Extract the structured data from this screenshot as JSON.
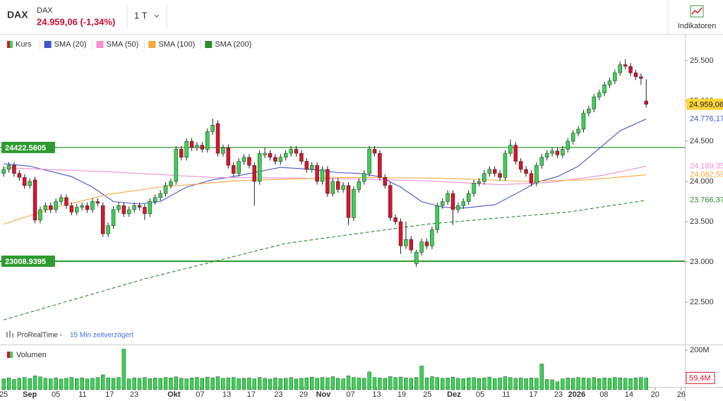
{
  "header": {
    "symbol": "DAX",
    "name": "DAX",
    "quote": "24.959,06 (-1,34%)",
    "period": "1 T",
    "button": "Indikatoren"
  },
  "chart_data": {
    "type": "candlestick",
    "price": {
      "name": "Kurs",
      "up_color": "#39d353",
      "down_color": "#d9142b",
      "last_label": "24.959,06",
      "last_color": "#ffd43b",
      "ohlc": [
        [
          24100,
          24190,
          24060,
          24150
        ],
        [
          24150,
          24240,
          24110,
          24200
        ],
        [
          24200,
          24240,
          24060,
          24100
        ],
        [
          24100,
          24140,
          24010,
          24050
        ],
        [
          24050,
          24090,
          23910,
          23950
        ],
        [
          23950,
          24040,
          23910,
          24000
        ],
        [
          24020,
          24060,
          23480,
          23520
        ],
        [
          23520,
          23690,
          23480,
          23650
        ],
        [
          23650,
          23740,
          23610,
          23700
        ],
        [
          23700,
          23740,
          23610,
          23650
        ],
        [
          23650,
          23790,
          23610,
          23750
        ],
        [
          23750,
          23840,
          23710,
          23800
        ],
        [
          23800,
          23840,
          23660,
          23700
        ],
        [
          23700,
          23740,
          23580,
          23620
        ],
        [
          23620,
          23720,
          23580,
          23680
        ],
        [
          23680,
          23740,
          23640,
          23700
        ],
        [
          23700,
          23740,
          23610,
          23650
        ],
        [
          23650,
          23790,
          23610,
          23750
        ],
        [
          23750,
          23790,
          23690,
          23730
        ],
        [
          23700,
          23740,
          23310,
          23350
        ],
        [
          23350,
          23490,
          23310,
          23450
        ],
        [
          23450,
          23690,
          23410,
          23650
        ],
        [
          23650,
          23740,
          23610,
          23700
        ],
        [
          23700,
          23740,
          23560,
          23600
        ],
        [
          23600,
          23690,
          23560,
          23650
        ],
        [
          23650,
          23740,
          23610,
          23700
        ],
        [
          23700,
          23740,
          23640,
          23680
        ],
        [
          23680,
          23720,
          23520,
          23600
        ],
        [
          23600,
          23790,
          23560,
          23750
        ],
        [
          23750,
          23840,
          23710,
          23800
        ],
        [
          23800,
          23890,
          23760,
          23850
        ],
        [
          23850,
          23990,
          23810,
          23950
        ],
        [
          23950,
          24040,
          23910,
          24000
        ],
        [
          24000,
          24440,
          23960,
          24400
        ],
        [
          24400,
          24440,
          24260,
          24300
        ],
        [
          24300,
          24540,
          24260,
          24500
        ],
        [
          24500,
          24540,
          24380,
          24420
        ],
        [
          24420,
          24490,
          24380,
          24450
        ],
        [
          24450,
          24490,
          24360,
          24400
        ],
        [
          24400,
          24660,
          24360,
          24620
        ],
        [
          24620,
          24780,
          24580,
          24700
        ],
        [
          24720,
          24760,
          24310,
          24350
        ],
        [
          24350,
          24460,
          24310,
          24420
        ],
        [
          24420,
          24460,
          24160,
          24200
        ],
        [
          24200,
          24240,
          24060,
          24100
        ],
        [
          24100,
          24290,
          24060,
          24250
        ],
        [
          24250,
          24340,
          24210,
          24300
        ],
        [
          24300,
          24340,
          24160,
          24200
        ],
        [
          24200,
          24240,
          23700,
          24000
        ],
        [
          24000,
          24390,
          23960,
          24350
        ],
        [
          24330,
          24420,
          24290,
          24350
        ],
        [
          24350,
          24390,
          24260,
          24300
        ],
        [
          24300,
          24340,
          24210,
          24250
        ],
        [
          24250,
          24340,
          24210,
          24300
        ],
        [
          24300,
          24390,
          24260,
          24350
        ],
        [
          24350,
          24440,
          24310,
          24400
        ],
        [
          24400,
          24440,
          24310,
          24350
        ],
        [
          24350,
          24390,
          24210,
          24250
        ],
        [
          24250,
          24290,
          24110,
          24150
        ],
        [
          24150,
          24240,
          24110,
          24200
        ],
        [
          24200,
          24240,
          23960,
          24000
        ],
        [
          24000,
          24190,
          23960,
          24150
        ],
        [
          24150,
          24190,
          23810,
          23850
        ],
        [
          23850,
          24040,
          23810,
          24000
        ],
        [
          24000,
          24040,
          23860,
          23900
        ],
        [
          23900,
          23990,
          23860,
          23950
        ],
        [
          23950,
          23990,
          23460,
          23550
        ],
        [
          23550,
          23940,
          23510,
          23900
        ],
        [
          23900,
          24040,
          23860,
          24000
        ],
        [
          24000,
          24140,
          23960,
          24100
        ],
        [
          24100,
          24440,
          24060,
          24400
        ],
        [
          24400,
          24440,
          24310,
          24350
        ],
        [
          24350,
          24390,
          24010,
          24050
        ],
        [
          24050,
          24090,
          23910,
          23950
        ],
        [
          23950,
          23990,
          23510,
          23550
        ],
        [
          23550,
          23590,
          23460,
          23500
        ],
        [
          23500,
          23540,
          23100,
          23200
        ],
        [
          23200,
          23500,
          23160,
          23280
        ],
        [
          23280,
          23320,
          23110,
          23150
        ],
        [
          22980,
          23150,
          22940,
          23120
        ],
        [
          23120,
          23290,
          23080,
          23250
        ],
        [
          23250,
          23290,
          23160,
          23200
        ],
        [
          23200,
          23440,
          23160,
          23400
        ],
        [
          23400,
          23740,
          23360,
          23700
        ],
        [
          23700,
          23790,
          23660,
          23750
        ],
        [
          23750,
          23890,
          23710,
          23850
        ],
        [
          23850,
          23890,
          23460,
          23650
        ],
        [
          23650,
          23740,
          23610,
          23700
        ],
        [
          23700,
          23790,
          23660,
          23750
        ],
        [
          23750,
          23890,
          23710,
          23850
        ],
        [
          23850,
          24020,
          23810,
          23980
        ],
        [
          23980,
          24040,
          23940,
          24000
        ],
        [
          24000,
          24140,
          23960,
          24100
        ],
        [
          24100,
          24190,
          24060,
          24150
        ],
        [
          24150,
          24190,
          24060,
          24100
        ],
        [
          24100,
          24140,
          24010,
          24050
        ],
        [
          24050,
          24390,
          24010,
          24350
        ],
        [
          24350,
          24520,
          24310,
          24450
        ],
        [
          24450,
          24490,
          24210,
          24250
        ],
        [
          24250,
          24290,
          24110,
          24150
        ],
        [
          24150,
          24190,
          24060,
          24100
        ],
        [
          24100,
          24140,
          23940,
          23980
        ],
        [
          23980,
          24240,
          23940,
          24200
        ],
        [
          24200,
          24340,
          24160,
          24300
        ],
        [
          24300,
          24390,
          24260,
          24350
        ],
        [
          24350,
          24420,
          24310,
          24380
        ],
        [
          24380,
          24420,
          24290,
          24330
        ],
        [
          24330,
          24440,
          24290,
          24400
        ],
        [
          24400,
          24540,
          24360,
          24500
        ],
        [
          24500,
          24640,
          24460,
          24600
        ],
        [
          24600,
          24690,
          24560,
          24650
        ],
        [
          24650,
          24890,
          24610,
          24850
        ],
        [
          24850,
          24940,
          24810,
          24900
        ],
        [
          24900,
          25090,
          24860,
          25050
        ],
        [
          25050,
          25140,
          25010,
          25100
        ],
        [
          25100,
          25240,
          25060,
          25200
        ],
        [
          25200,
          25290,
          25160,
          25250
        ],
        [
          25250,
          25390,
          25210,
          25350
        ],
        [
          25350,
          25490,
          25310,
          25450
        ],
        [
          25450,
          25520,
          25390,
          25430
        ],
        [
          25430,
          25470,
          25310,
          25350
        ],
        [
          25350,
          25390,
          25260,
          25300
        ],
        [
          25300,
          25340,
          25200,
          25280
        ],
        [
          25000,
          25270,
          24920,
          24959.06
        ]
      ]
    },
    "series": [
      {
        "name": "SMA (20)",
        "color": "#4455d0",
        "dashed": false,
        "label": "24.776,17",
        "x": [
          0,
          5,
          13,
          17,
          21,
          26,
          30,
          35,
          40,
          44,
          53,
          59,
          64,
          68,
          72,
          76,
          80,
          84,
          88,
          94,
          99,
          102,
          106,
          110,
          114,
          118,
          123
        ],
        "values": [
          24220,
          24190,
          24060,
          23930,
          23750,
          23720,
          23750,
          23930,
          24020,
          24060,
          24175,
          24150,
          24110,
          24100,
          24060,
          23930,
          23750,
          23680,
          23670,
          23710,
          23880,
          23990,
          24060,
          24190,
          24410,
          24630,
          24776.17
        ]
      },
      {
        "name": "SMA (50)",
        "color": "#f28fd0",
        "dashed": false,
        "label": "24.189,35",
        "x": [
          0,
          20,
          40,
          60,
          80,
          95,
          105,
          115,
          123
        ],
        "values": [
          24170,
          24120,
          24050,
          24040,
          24010,
          23960,
          23990,
          24080,
          24189.35
        ]
      },
      {
        "name": "SMA (100)",
        "color": "#f5a93b",
        "dashed": false,
        "label": "24.082,59",
        "x": [
          0,
          10,
          20,
          30,
          45,
          65,
          85,
          100,
          112,
          123
        ],
        "values": [
          23470,
          23680,
          23840,
          23930,
          24010,
          24050,
          24040,
          24000,
          24020,
          24082.59
        ]
      },
      {
        "name": "SMA (200)",
        "color": "#2e8b2e",
        "dashed": true,
        "label": "23.766,37",
        "x": [
          0,
          27,
          54,
          81,
          108,
          123
        ],
        "values": [
          22280,
          22790,
          23230,
          23470,
          23620,
          23766.37
        ]
      }
    ],
    "hlines": [
      24422.5605,
      23008.9395
    ],
    "hline_color": "#2f9a2f",
    "ylim": [
      21974,
      25816
    ],
    "yticks": [
      {
        "value": 22500,
        "label": "22.500"
      },
      {
        "value": 23000,
        "label": "23.000"
      },
      {
        "value": 23500,
        "label": "23.500"
      },
      {
        "value": 24000,
        "label": "24.000"
      },
      {
        "value": 24500,
        "label": "24.500"
      },
      {
        "value": 25000,
        "label": "25.000"
      },
      {
        "value": 25500,
        "label": "25.500"
      }
    ],
    "xlim": [
      -0.7,
      130.4
    ],
    "xticks": [
      {
        "value": 0,
        "label": "25"
      },
      {
        "value": 5,
        "label": "Sep"
      },
      {
        "value": 10,
        "label": "05"
      },
      {
        "value": 15.1,
        "label": "11"
      },
      {
        "value": 20.3,
        "label": "17"
      },
      {
        "value": 25,
        "label": "23"
      },
      {
        "value": 32.6,
        "label": "Okt"
      },
      {
        "value": 37.6,
        "label": "07"
      },
      {
        "value": 42.7,
        "label": "13"
      },
      {
        "value": 47.4,
        "label": "17"
      },
      {
        "value": 52.6,
        "label": "23"
      },
      {
        "value": 57.4,
        "label": "29"
      },
      {
        "value": 61.2,
        "label": "Nov"
      },
      {
        "value": 66.4,
        "label": "07"
      },
      {
        "value": 71.4,
        "label": "13"
      },
      {
        "value": 76.2,
        "label": "19"
      },
      {
        "value": 81.1,
        "label": "25"
      },
      {
        "value": 86.2,
        "label": "Dez"
      },
      {
        "value": 91.2,
        "label": "05"
      },
      {
        "value": 96.2,
        "label": "11"
      },
      {
        "value": 101.4,
        "label": "17"
      },
      {
        "value": 106.2,
        "label": "23"
      },
      {
        "value": 109.7,
        "label": "2026"
      },
      {
        "value": 114.9,
        "label": "08"
      },
      {
        "value": 119.7,
        "label": "14"
      },
      {
        "value": 124.7,
        "label": "20"
      },
      {
        "value": 129.7,
        "label": "26"
      }
    ],
    "source": "ProRealTime -",
    "delay": "15 Min zeitverzögert",
    "volume": {
      "title": "Volumen",
      "color": "#39d353",
      "ylim": [
        0,
        221
      ],
      "yticks": [
        {
          "value": 200,
          "label": "200M"
        }
      ],
      "last_label": "59,4M",
      "values": [
        55,
        60,
        52,
        58,
        62,
        57,
        70,
        65,
        58,
        55,
        60,
        54,
        58,
        62,
        56,
        60,
        55,
        58,
        62,
        75,
        60,
        58,
        62,
        205,
        55,
        60,
        58,
        62,
        56,
        60,
        58,
        62,
        60,
        65,
        58,
        55,
        60,
        62,
        58,
        64,
        60,
        66,
        58,
        60,
        62,
        56,
        58,
        60,
        55,
        62,
        58,
        54,
        60,
        56,
        58,
        62,
        55,
        58,
        60,
        64,
        58,
        62,
        60,
        66,
        58,
        55,
        70,
        62,
        60,
        58,
        90,
        62,
        60,
        58,
        66,
        62,
        64,
        60,
        58,
        62,
        120,
        60,
        66,
        62,
        58,
        60,
        64,
        58,
        56,
        60,
        62,
        58,
        60,
        64,
        56,
        60,
        66,
        62,
        58,
        60,
        56,
        60,
        58,
        130,
        52,
        50,
        40,
        55,
        60,
        58,
        62,
        60,
        58,
        62,
        56,
        60,
        58,
        62,
        60,
        58,
        56,
        60,
        62,
        59.4
      ]
    }
  }
}
